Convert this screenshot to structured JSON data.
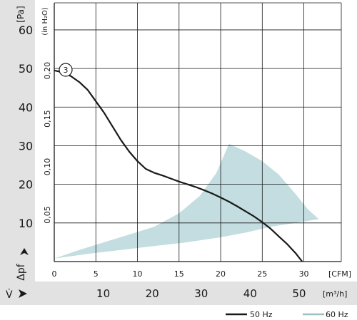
{
  "chart_data": {
    "type": "line",
    "yaxis_left": {
      "unit": "[Pa]",
      "ticks": [
        "10",
        "20",
        "30",
        "40",
        "50",
        "60"
      ],
      "ylim": [
        0,
        67
      ],
      "symbol": "Δpf"
    },
    "yaxis_inner": {
      "unit": "(in H₂O)",
      "ticks": [
        "0,05",
        "0,10",
        "0,15",
        "0,20"
      ]
    },
    "xaxis_cfm": {
      "unit": "[CFM]",
      "ticks": [
        "0",
        "5",
        "10",
        "15",
        "20",
        "25",
        "30"
      ],
      "xlim": [
        0,
        34.5
      ]
    },
    "xaxis_m3h": {
      "unit": "[m³/h]",
      "ticks": [
        "10",
        "20",
        "30",
        "40",
        "50"
      ],
      "symbol": "V̇"
    },
    "series": [
      {
        "name": "50 Hz",
        "color": "#1a1a1a",
        "x": [
          0,
          1,
          2,
          3,
          4,
          5,
          6,
          7,
          8,
          9,
          10,
          11,
          12,
          13,
          14,
          15,
          16,
          17,
          18,
          19,
          20,
          21,
          22,
          23,
          24,
          25,
          26,
          27,
          28,
          29,
          29.8
        ],
        "y": [
          49.5,
          49,
          48,
          46.5,
          44.5,
          41.5,
          38.5,
          35,
          31.5,
          28.5,
          26,
          24,
          23,
          22.3,
          21.5,
          20.7,
          20,
          19.3,
          18.5,
          17.6,
          16.6,
          15.5,
          14.3,
          13,
          11.7,
          10.2,
          8.5,
          6.5,
          4.5,
          2.2,
          0
        ]
      }
    ],
    "region": {
      "name": "60 Hz",
      "color": "#b9d7da",
      "x": [
        0,
        3,
        6,
        9,
        12,
        15,
        17.5,
        19.5,
        21,
        23,
        25,
        27,
        29,
        30.5,
        31.8,
        29,
        26,
        23,
        20,
        16,
        12,
        8,
        4,
        0
      ],
      "y": [
        0.8,
        3,
        5,
        7,
        9,
        12.5,
        17,
        23,
        30.5,
        28.5,
        26,
        22.5,
        17.5,
        13.5,
        11,
        10,
        9,
        7.5,
        6.3,
        5,
        4,
        3,
        2,
        0.8
      ]
    },
    "annotation": "3",
    "legend": "bottom-right",
    "grid": true
  }
}
